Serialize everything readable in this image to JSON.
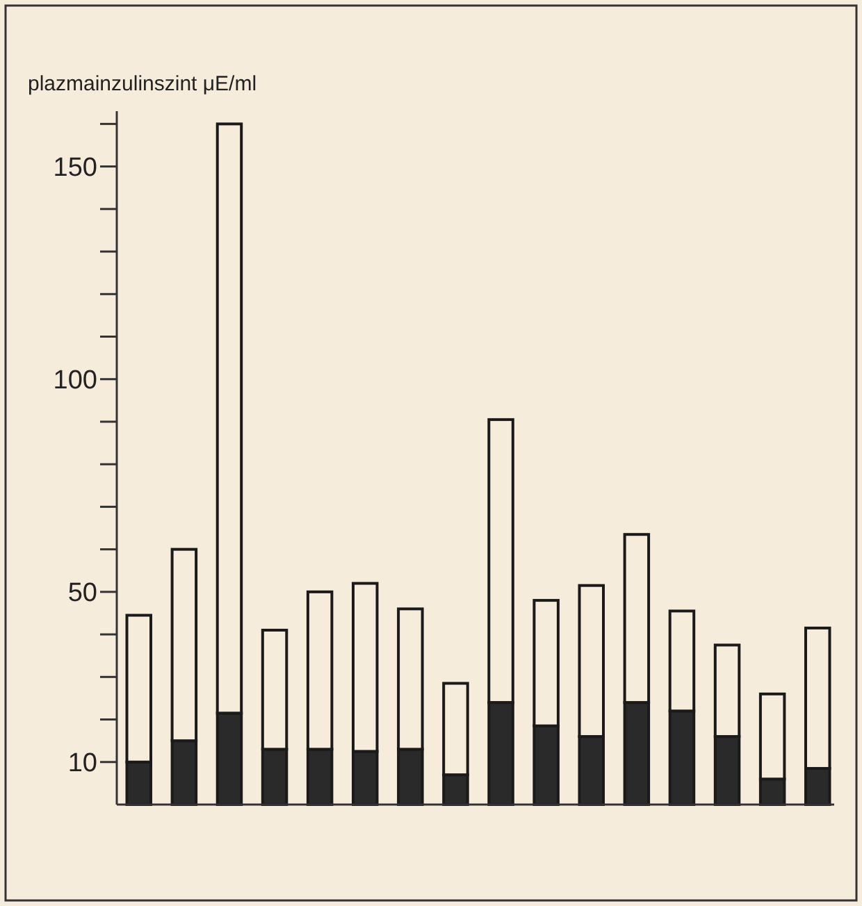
{
  "chart_data": {
    "type": "bar",
    "stacked": true,
    "ylabel": "plazmainzulinszint μE/ml",
    "categories": [
      null,
      null,
      null,
      null,
      null,
      null,
      null,
      null,
      null,
      null,
      null,
      null,
      null,
      null,
      null,
      null
    ],
    "series": [
      {
        "color": "#2a2a2a",
        "values": [
          10,
          15,
          21.5,
          13,
          13,
          12.5,
          13,
          7,
          24,
          18.5,
          16,
          24,
          22,
          16,
          6,
          8.5
        ]
      },
      {
        "color": "#f6ecdc",
        "values": [
          34.5,
          45,
          138.5,
          28,
          37,
          39.5,
          33,
          21.5,
          66.5,
          29.5,
          35.5,
          39.5,
          23.5,
          21.5,
          20,
          33
        ]
      }
    ],
    "ylim": [
      0,
      163
    ],
    "yticks": [
      10,
      {
        "value": 20,
        "label": null
      },
      {
        "value": 30,
        "label": null
      },
      {
        "value": 40,
        "label": null
      },
      50,
      {
        "value": 60,
        "label": null
      },
      {
        "value": 70,
        "label": null
      },
      {
        "value": 80,
        "label": null
      },
      {
        "value": 90,
        "label": null
      },
      100,
      {
        "value": 110,
        "label": null
      },
      {
        "value": 120,
        "label": null
      },
      {
        "value": 130,
        "label": null
      },
      {
        "value": 140,
        "label": null
      },
      150,
      {
        "value": 160,
        "label": null
      }
    ],
    "grid": false
  }
}
